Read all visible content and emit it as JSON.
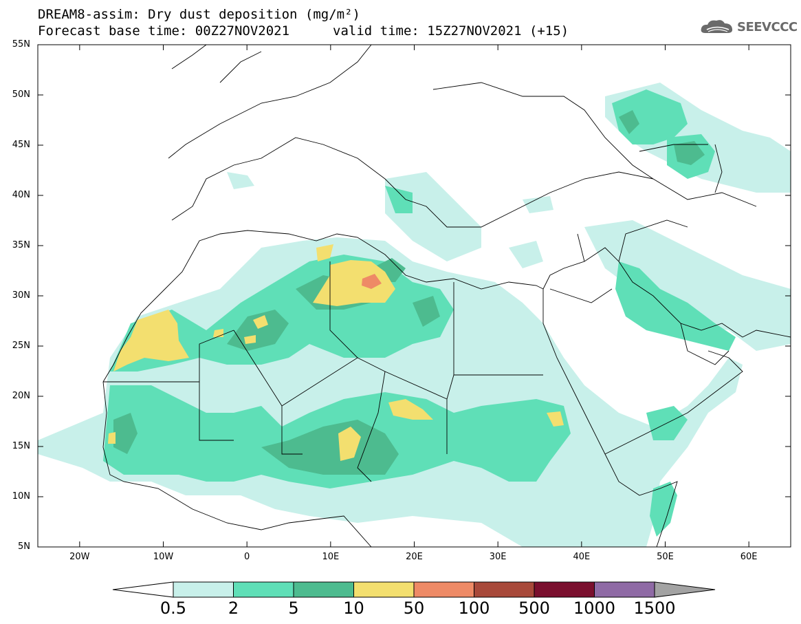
{
  "header": {
    "line1": "DREAM8-assim: Dry dust deposition (mg/m²)",
    "line2": "Forecast base time: 00Z27NOV2021",
    "line3": "valid time: 15Z27NOV2021 (+15)",
    "logo_text": "SEEVCCC",
    "logo_icon": "cloud-icon"
  },
  "map": {
    "lat_labels": [
      "55N",
      "50N",
      "45N",
      "40N",
      "35N",
      "30N",
      "25N",
      "20N",
      "15N",
      "10N",
      "5N"
    ],
    "lon_labels": [
      "20W",
      "10W",
      "0",
      "10E",
      "20E",
      "30E",
      "40E",
      "50E",
      "60E"
    ],
    "lon_range": [
      -25,
      65
    ],
    "lat_range": [
      5,
      55
    ]
  },
  "legend": {
    "levels": [
      "0.5",
      "2",
      "5",
      "10",
      "50",
      "100",
      "500",
      "1000",
      "1500"
    ],
    "colors": [
      "#c8f0ea",
      "#5fdfb7",
      "#4dbb8f",
      "#f3df6f",
      "#ee8a66",
      "#a8493a",
      "#7a0f2e",
      "#8f6aa5"
    ],
    "under_color": "#ffffff",
    "over_color": "#a3a3a3"
  }
}
